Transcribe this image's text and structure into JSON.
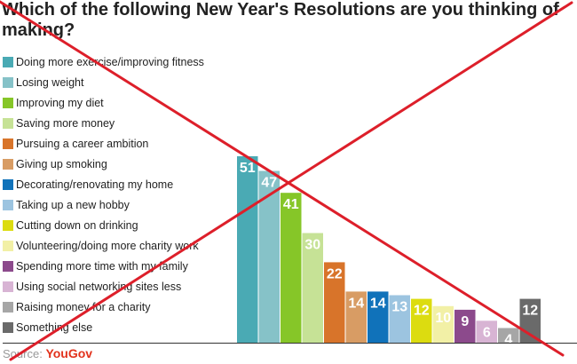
{
  "title": "Which of the following New Year's  Resolutions are you thinking of making?",
  "source_label": "Source:",
  "source_brand": "YouGov",
  "colors": {
    "cross": "#dd1f2a",
    "axis": "#333333",
    "label": "#ffffff"
  },
  "chart_data": {
    "type": "bar",
    "title": "Which of the following New Year's  Resolutions are you thinking of making?",
    "xlabel": "",
    "ylabel": "",
    "categories": [
      "Doing more exercise/improving fitness",
      "Losing weight",
      "Improving my diet",
      "Saving more money",
      "Pursuing a career ambition",
      "Giving up smoking",
      "Decorating/renovating my home",
      "Taking up a new hobby",
      "Cutting down on drinking",
      "Volunteering/doing more charity work",
      "Spending more time with my family",
      "Using social networking sites less",
      "Raising money for a charity",
      "Something else"
    ],
    "values": [
      51,
      47,
      41,
      30,
      22,
      14,
      14,
      13,
      12,
      10,
      9,
      6,
      4,
      12
    ],
    "bar_colors": [
      "#4aaab4",
      "#86c2c8",
      "#86c628",
      "#c6e296",
      "#d8742a",
      "#d89c64",
      "#1072ba",
      "#9cc4e0",
      "#dcdc10",
      "#f2f0a6",
      "#8c4a8c",
      "#d8b4d4",
      "#a6a6a6",
      "#6a6a6a"
    ],
    "data_labels": [
      "51",
      "47",
      "41",
      "30",
      "22",
      "14",
      "14",
      "13",
      "12",
      "10",
      "9",
      "6",
      "4",
      "12"
    ],
    "ylim": [
      0,
      51
    ],
    "grid": false,
    "legend": "left",
    "annotation": "red cross drawn over the chart"
  }
}
